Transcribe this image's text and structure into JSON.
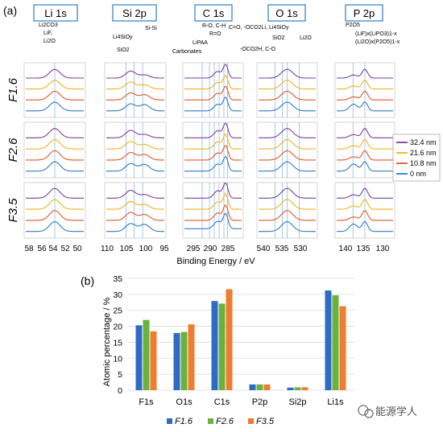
{
  "panel_a": {
    "label": "(a)",
    "element_titles": [
      "Li 1s",
      "Si 2p",
      "C 1s",
      "O 1s",
      "P 2p"
    ],
    "rows": [
      "F1.6",
      "F2.6",
      "F3.5"
    ],
    "xlabel": "Binding Energy / eV",
    "ticks": [
      [
        "58",
        "56",
        "54",
        "52",
        "50"
      ],
      [
        "110",
        "105",
        "100",
        "95"
      ],
      [
        "295",
        "290",
        "285"
      ],
      [
        "540",
        "535",
        "530"
      ],
      [
        "140",
        "135",
        "130"
      ]
    ],
    "annotations": {
      "li": [
        "Li2CO3",
        "LiF,",
        "Li2O"
      ],
      "si": [
        "Li4SiOy",
        "SiO2",
        "Si-Si"
      ],
      "c": [
        "R-O, C-H",
        "R=O",
        "LiPAA",
        "Carbonates"
      ],
      "o": [
        "C=O, -OCO2Li, Li4SiOy",
        "SiO2",
        "Li2O",
        "-OCO2H, C-O"
      ],
      "p": [
        "P2O5",
        "(LiF)x(LiPO3)1-x",
        "(Li2O)x(P2O5)1-x"
      ]
    },
    "legend": [
      {
        "label": "32.4 nm",
        "color": "#7b3f9e"
      },
      {
        "label": "21.6 nm",
        "color": "#f2b01e"
      },
      {
        "label": "10.8 nm",
        "color": "#e2562b"
      },
      {
        "label": "0 nm",
        "color": "#2e7cc4"
      }
    ]
  },
  "chart_data": {
    "type": "bar",
    "label": "(b)",
    "ylabel": "Atomic percentage / %",
    "ylim": [
      0,
      35
    ],
    "yticks": [
      "0",
      "5",
      "10",
      "15",
      "20",
      "25",
      "30",
      "35"
    ],
    "categories": [
      "F1s",
      "O1s",
      "C1s",
      "P2p",
      "Si2p",
      "Li1s"
    ],
    "series": [
      {
        "name": "F1.6",
        "color": "#2e6bc4",
        "values": [
          20.3,
          17.9,
          27.9,
          1.8,
          0.8,
          31.2
        ]
      },
      {
        "name": "F2.6",
        "color": "#6ab23e",
        "values": [
          22.0,
          18.2,
          27.1,
          1.8,
          0.9,
          29.7
        ]
      },
      {
        "name": "F3.5",
        "color": "#ee7d2f",
        "values": [
          18.4,
          20.6,
          31.6,
          1.8,
          0.9,
          26.3
        ]
      }
    ],
    "grid": true,
    "legend_position": "bottom"
  },
  "watermark": "能源学人"
}
